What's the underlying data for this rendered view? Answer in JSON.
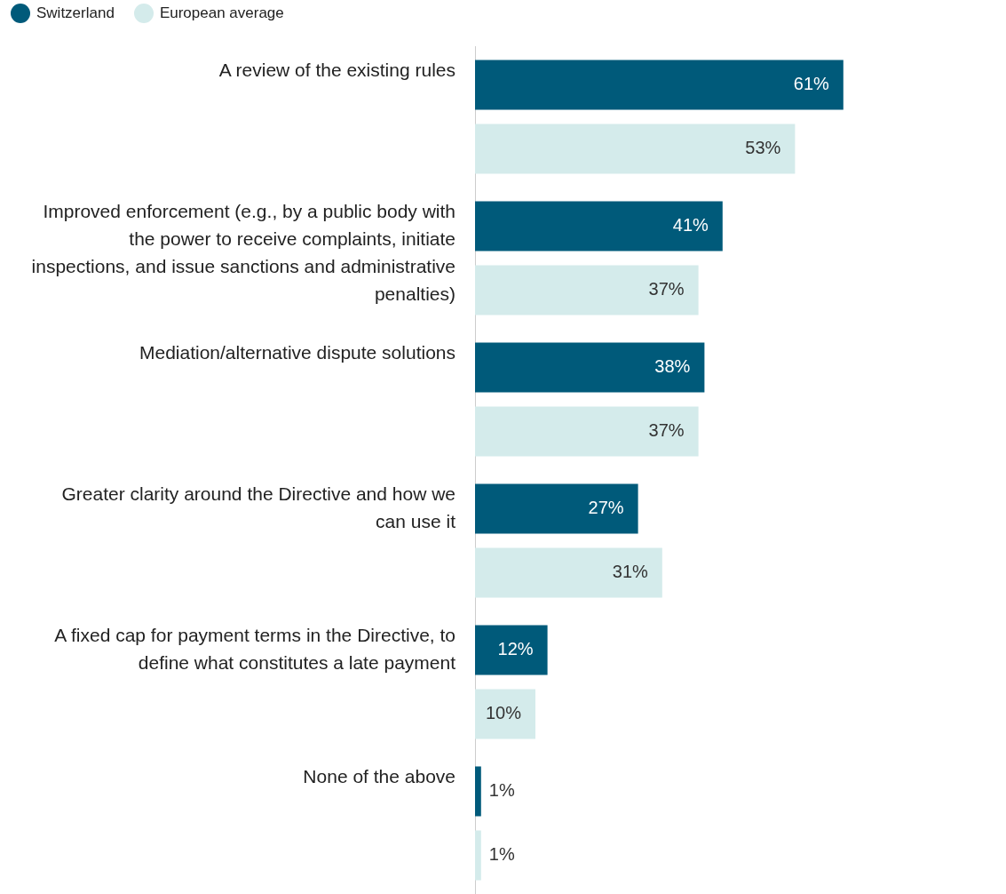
{
  "chart_data": {
    "type": "bar",
    "orientation": "horizontal",
    "legend": "top left",
    "tick_labels": "y",
    "categories": [
      "A review of the existing rules",
      "Improved enforcement (e.g., by a public body with the power to receive complaints, initiate inspections, and issue sanctions and administrative penalties)",
      "Mediation/alternative dispute solutions",
      "Greater clarity around the Directive and how we can use it",
      "A fixed cap for payment terms in the Directive, to define what constitutes a late payment",
      "None of the above"
    ],
    "series": [
      {
        "name": "Switzerland",
        "color": "#005a7a",
        "values": [
          61,
          41,
          38,
          27,
          12,
          1
        ],
        "value_labels": [
          "61%",
          "41%",
          "38%",
          "27%",
          "12%",
          "1%"
        ]
      },
      {
        "name": "European average",
        "color": "#d4ebeb",
        "values": [
          53,
          37,
          37,
          31,
          10,
          1
        ],
        "value_labels": [
          "53%",
          "37%",
          "37%",
          "31%",
          "10%",
          "1%"
        ]
      }
    ]
  }
}
